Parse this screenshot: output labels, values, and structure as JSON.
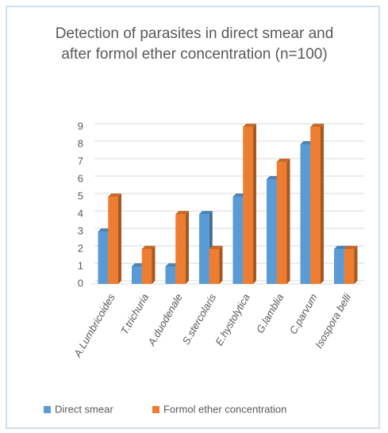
{
  "chart_data": {
    "type": "bar",
    "title": "Detection of parasites in direct smear and after formol ether concentration (n=100)",
    "categories": [
      "A.Lumbricoides",
      "T.trichuria",
      "A.duodenale",
      "S.stercolaris",
      "E.hystolytica",
      "G.lamblia",
      "C.parvum",
      "Isospora belli"
    ],
    "series": [
      {
        "name": "Direct smear",
        "color": "#5b9bd5",
        "values": [
          3,
          1,
          1,
          4,
          5,
          6,
          8,
          2
        ]
      },
      {
        "name": "Formol ether concentration",
        "color": "#ed7d31",
        "values": [
          5,
          2,
          4,
          2,
          9,
          7,
          9,
          2
        ]
      }
    ],
    "ylim": [
      0,
      9
    ],
    "yticks": [
      0,
      1,
      2,
      3,
      4,
      5,
      6,
      7,
      8,
      9
    ],
    "grid": true,
    "legend": "bottom"
  }
}
